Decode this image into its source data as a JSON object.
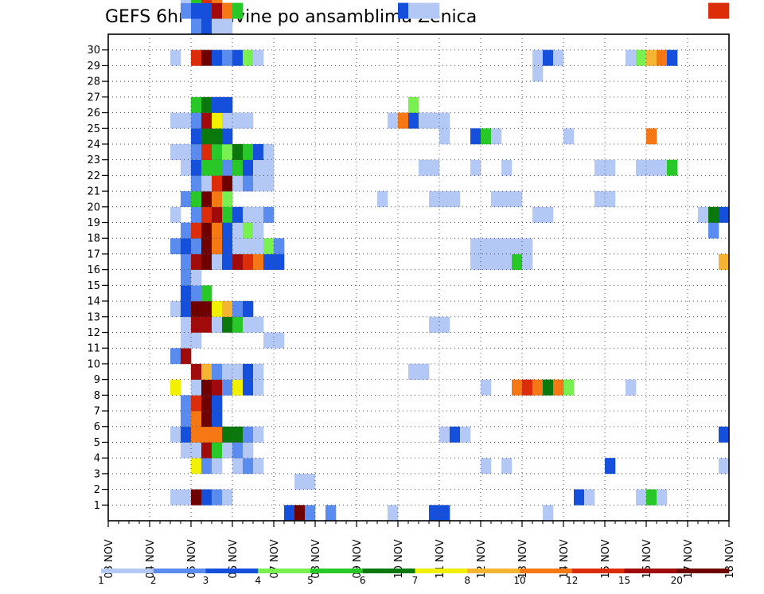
{
  "chart_data": {
    "type": "heatmap",
    "title": "GEFS 6hr padavine po ansamblima Zenica",
    "xlabel": "",
    "ylabel": "",
    "x_ticks": [
      "03 NOV",
      "04 NOV",
      "05 NOV",
      "06 NOV",
      "07 NOV",
      "08 NOV",
      "09 NOV",
      "10 NOV",
      "11 NOV",
      "12 NOV",
      "13 NOV",
      "14 NOV",
      "15 NOV",
      "16 NOV",
      "17 NOV",
      "18 NOV"
    ],
    "y_ticks": [
      "1",
      "2",
      "3",
      "4",
      "5",
      "6",
      "7",
      "8",
      "9",
      "10",
      "11",
      "12",
      "13",
      "14",
      "15",
      "16",
      "17",
      "18",
      "19",
      "20",
      "21",
      "22",
      "23",
      "24",
      "25",
      "26",
      "27",
      "28",
      "29",
      "30"
    ],
    "x_step": "6hr",
    "time_slots": 60,
    "members": 31,
    "grid": true,
    "legend": {
      "placement": "bottom",
      "labels": [
        "1",
        "2",
        "3",
        "4",
        "5",
        "6",
        "7",
        "8",
        "10",
        "12",
        "15",
        "20"
      ],
      "colors": [
        "#b4c8f5",
        "#5a8cf0",
        "#1450dc",
        "#78f050",
        "#28c828",
        "#0a780a",
        "#f0f000",
        "#f5b432",
        "#f57814",
        "#dc2d0a",
        "#a00a0a",
        "#6e0000"
      ]
    },
    "cells": [
      [
        0,
        17,
        2
      ],
      [
        0,
        18,
        11
      ],
      [
        0,
        19,
        1
      ],
      [
        0,
        21,
        1
      ],
      [
        0,
        27,
        0
      ],
      [
        0,
        31,
        2
      ],
      [
        0,
        32,
        2
      ],
      [
        0,
        42,
        0
      ],
      [
        1,
        6,
        0
      ],
      [
        1,
        7,
        0
      ],
      [
        1,
        8,
        11
      ],
      [
        1,
        9,
        2
      ],
      [
        1,
        10,
        1
      ],
      [
        1,
        11,
        0
      ],
      [
        1,
        45,
        2
      ],
      [
        1,
        46,
        0
      ],
      [
        1,
        51,
        0
      ],
      [
        1,
        52,
        4
      ],
      [
        1,
        53,
        0
      ],
      [
        2,
        18,
        0
      ],
      [
        2,
        19,
        0
      ],
      [
        3,
        8,
        6
      ],
      [
        3,
        9,
        1
      ],
      [
        3,
        10,
        0
      ],
      [
        3,
        12,
        0
      ],
      [
        3,
        13,
        1
      ],
      [
        3,
        14,
        0
      ],
      [
        3,
        36,
        0
      ],
      [
        3,
        38,
        0
      ],
      [
        3,
        48,
        2
      ],
      [
        3,
        59,
        0
      ],
      [
        4,
        7,
        0
      ],
      [
        4,
        8,
        0
      ],
      [
        4,
        9,
        10
      ],
      [
        4,
        10,
        4
      ],
      [
        4,
        11,
        0
      ],
      [
        4,
        12,
        1
      ],
      [
        4,
        13,
        0
      ],
      [
        5,
        6,
        0
      ],
      [
        5,
        7,
        2
      ],
      [
        5,
        8,
        8
      ],
      [
        5,
        9,
        8
      ],
      [
        5,
        10,
        8
      ],
      [
        5,
        11,
        5
      ],
      [
        5,
        12,
        5
      ],
      [
        5,
        13,
        1
      ],
      [
        5,
        14,
        0
      ],
      [
        5,
        32,
        0
      ],
      [
        5,
        33,
        2
      ],
      [
        5,
        34,
        0
      ],
      [
        5,
        59,
        2
      ],
      [
        6,
        7,
        1
      ],
      [
        6,
        8,
        8
      ],
      [
        6,
        9,
        11
      ],
      [
        6,
        10,
        2
      ],
      [
        7,
        7,
        1
      ],
      [
        7,
        8,
        9
      ],
      [
        7,
        9,
        11
      ],
      [
        7,
        10,
        2
      ],
      [
        8,
        6,
        6
      ],
      [
        8,
        8,
        0
      ],
      [
        8,
        9,
        11
      ],
      [
        8,
        10,
        10
      ],
      [
        8,
        11,
        1
      ],
      [
        8,
        12,
        6
      ],
      [
        8,
        13,
        2
      ],
      [
        8,
        14,
        0
      ],
      [
        8,
        36,
        0
      ],
      [
        8,
        39,
        8
      ],
      [
        8,
        40,
        9
      ],
      [
        8,
        41,
        8
      ],
      [
        8,
        42,
        5
      ],
      [
        8,
        43,
        8
      ],
      [
        8,
        44,
        3
      ],
      [
        8,
        50,
        0
      ],
      [
        9,
        8,
        10
      ],
      [
        9,
        9,
        7
      ],
      [
        9,
        10,
        1
      ],
      [
        9,
        11,
        0
      ],
      [
        9,
        12,
        0
      ],
      [
        9,
        13,
        2
      ],
      [
        9,
        14,
        0
      ],
      [
        9,
        29,
        0
      ],
      [
        9,
        30,
        0
      ],
      [
        10,
        6,
        1
      ],
      [
        10,
        7,
        10
      ],
      [
        11,
        7,
        0
      ],
      [
        11,
        8,
        0
      ],
      [
        11,
        15,
        0
      ],
      [
        11,
        16,
        0
      ],
      [
        12,
        7,
        0
      ],
      [
        12,
        8,
        10
      ],
      [
        12,
        9,
        10
      ],
      [
        12,
        10,
        0
      ],
      [
        12,
        11,
        5
      ],
      [
        12,
        12,
        4
      ],
      [
        12,
        13,
        0
      ],
      [
        12,
        14,
        0
      ],
      [
        12,
        31,
        0
      ],
      [
        12,
        32,
        0
      ],
      [
        13,
        6,
        0
      ],
      [
        13,
        7,
        2
      ],
      [
        13,
        8,
        11
      ],
      [
        13,
        9,
        11
      ],
      [
        13,
        10,
        6
      ],
      [
        13,
        11,
        7
      ],
      [
        13,
        12,
        1
      ],
      [
        13,
        13,
        2
      ],
      [
        14,
        7,
        2
      ],
      [
        14,
        8,
        1
      ],
      [
        14,
        9,
        4
      ],
      [
        15,
        7,
        1
      ],
      [
        15,
        8,
        0
      ],
      [
        16,
        7,
        1
      ],
      [
        16,
        8,
        10
      ],
      [
        16,
        9,
        11
      ],
      [
        16,
        10,
        0
      ],
      [
        16,
        11,
        2
      ],
      [
        16,
        12,
        10
      ],
      [
        16,
        13,
        9
      ],
      [
        16,
        14,
        8
      ],
      [
        16,
        15,
        2
      ],
      [
        16,
        16,
        2
      ],
      [
        16,
        35,
        0
      ],
      [
        16,
        36,
        0
      ],
      [
        16,
        37,
        0
      ],
      [
        16,
        38,
        0
      ],
      [
        16,
        39,
        4
      ],
      [
        16,
        40,
        0
      ],
      [
        16,
        59,
        7
      ],
      [
        17,
        6,
        1
      ],
      [
        17,
        7,
        2
      ],
      [
        17,
        8,
        1
      ],
      [
        17,
        9,
        11
      ],
      [
        17,
        10,
        8
      ],
      [
        17,
        11,
        2
      ],
      [
        17,
        12,
        0
      ],
      [
        17,
        13,
        0
      ],
      [
        17,
        14,
        0
      ],
      [
        17,
        15,
        3
      ],
      [
        17,
        16,
        1
      ],
      [
        17,
        35,
        0
      ],
      [
        17,
        36,
        0
      ],
      [
        17,
        37,
        0
      ],
      [
        17,
        38,
        0
      ],
      [
        17,
        39,
        0
      ],
      [
        17,
        40,
        0
      ],
      [
        18,
        7,
        1
      ],
      [
        18,
        8,
        9
      ],
      [
        18,
        9,
        11
      ],
      [
        18,
        10,
        8
      ],
      [
        18,
        11,
        2
      ],
      [
        18,
        12,
        0
      ],
      [
        18,
        13,
        3
      ],
      [
        18,
        14,
        0
      ],
      [
        18,
        58,
        1
      ],
      [
        19,
        6,
        0
      ],
      [
        19,
        8,
        1
      ],
      [
        19,
        9,
        9
      ],
      [
        19,
        10,
        10
      ],
      [
        19,
        11,
        4
      ],
      [
        19,
        12,
        2
      ],
      [
        19,
        13,
        0
      ],
      [
        19,
        14,
        0
      ],
      [
        19,
        15,
        1
      ],
      [
        19,
        41,
        0
      ],
      [
        19,
        42,
        0
      ],
      [
        19,
        57,
        0
      ],
      [
        19,
        58,
        5
      ],
      [
        19,
        59,
        2
      ],
      [
        19,
        60,
        2
      ],
      [
        20,
        7,
        1
      ],
      [
        20,
        8,
        4
      ],
      [
        20,
        9,
        11
      ],
      [
        20,
        10,
        8
      ],
      [
        20,
        11,
        3
      ],
      [
        20,
        26,
        0
      ],
      [
        20,
        31,
        0
      ],
      [
        20,
        32,
        0
      ],
      [
        20,
        33,
        0
      ],
      [
        20,
        37,
        0
      ],
      [
        20,
        38,
        0
      ],
      [
        20,
        39,
        0
      ],
      [
        20,
        47,
        0
      ],
      [
        20,
        48,
        0
      ],
      [
        21,
        8,
        1
      ],
      [
        21,
        9,
        0
      ],
      [
        21,
        10,
        9
      ],
      [
        21,
        11,
        11
      ],
      [
        21,
        12,
        0
      ],
      [
        21,
        13,
        1
      ],
      [
        21,
        14,
        0
      ],
      [
        21,
        15,
        0
      ],
      [
        22,
        7,
        0
      ],
      [
        22,
        8,
        2
      ],
      [
        22,
        9,
        4
      ],
      [
        22,
        10,
        4
      ],
      [
        22,
        11,
        1
      ],
      [
        22,
        12,
        4
      ],
      [
        22,
        13,
        2
      ],
      [
        22,
        14,
        0
      ],
      [
        22,
        15,
        0
      ],
      [
        22,
        30,
        0
      ],
      [
        22,
        31,
        0
      ],
      [
        22,
        35,
        0
      ],
      [
        22,
        38,
        0
      ],
      [
        22,
        47,
        0
      ],
      [
        22,
        48,
        0
      ],
      [
        22,
        51,
        0
      ],
      [
        22,
        52,
        0
      ],
      [
        22,
        53,
        0
      ],
      [
        22,
        54,
        4
      ],
      [
        23,
        6,
        0
      ],
      [
        23,
        7,
        0
      ],
      [
        23,
        8,
        1
      ],
      [
        23,
        9,
        9
      ],
      [
        23,
        10,
        4
      ],
      [
        23,
        11,
        3
      ],
      [
        23,
        12,
        5
      ],
      [
        23,
        13,
        4
      ],
      [
        23,
        14,
        2
      ],
      [
        23,
        15,
        0
      ],
      [
        24,
        8,
        2
      ],
      [
        24,
        9,
        5
      ],
      [
        24,
        10,
        5
      ],
      [
        24,
        11,
        2
      ],
      [
        24,
        32,
        0
      ],
      [
        24,
        35,
        2
      ],
      [
        24,
        36,
        4
      ],
      [
        24,
        37,
        0
      ],
      [
        24,
        44,
        0
      ],
      [
        24,
        52,
        8
      ],
      [
        25,
        6,
        0
      ],
      [
        25,
        7,
        0
      ],
      [
        25,
        8,
        1
      ],
      [
        25,
        9,
        10
      ],
      [
        25,
        10,
        6
      ],
      [
        25,
        11,
        0
      ],
      [
        25,
        12,
        0
      ],
      [
        25,
        13,
        0
      ],
      [
        25,
        27,
        0
      ],
      [
        25,
        28,
        8
      ],
      [
        25,
        29,
        2
      ],
      [
        25,
        30,
        0
      ],
      [
        25,
        31,
        0
      ],
      [
        25,
        32,
        0
      ],
      [
        26,
        8,
        4
      ],
      [
        26,
        9,
        5
      ],
      [
        26,
        10,
        2
      ],
      [
        26,
        11,
        2
      ],
      [
        26,
        29,
        3
      ],
      [
        28,
        41,
        0
      ],
      [
        29,
        6,
        0
      ],
      [
        29,
        8,
        9
      ],
      [
        29,
        9,
        11
      ],
      [
        29,
        10,
        2
      ],
      [
        29,
        11,
        1
      ],
      [
        29,
        12,
        2
      ],
      [
        29,
        13,
        3
      ],
      [
        29,
        14,
        0
      ],
      [
        29,
        41,
        0
      ],
      [
        29,
        42,
        2
      ],
      [
        29,
        43,
        0
      ],
      [
        29,
        50,
        0
      ],
      [
        29,
        51,
        3
      ],
      [
        29,
        52,
        7
      ],
      [
        29,
        53,
        8
      ],
      [
        29,
        54,
        2
      ],
      [
        31,
        8,
        1
      ],
      [
        31,
        9,
        2
      ],
      [
        31,
        10,
        0
      ],
      [
        31,
        11,
        0
      ],
      [
        32,
        7,
        1
      ],
      [
        32,
        8,
        2
      ],
      [
        32,
        9,
        2
      ],
      [
        32,
        10,
        10
      ],
      [
        32,
        11,
        8
      ],
      [
        32,
        12,
        4
      ],
      [
        32,
        28,
        2
      ],
      [
        32,
        29,
        0
      ],
      [
        32,
        30,
        0
      ],
      [
        32,
        31,
        0
      ],
      [
        32,
        58,
        9
      ],
      [
        32,
        59,
        9
      ],
      [
        32,
        60,
        2
      ],
      [
        33,
        7,
        0
      ],
      [
        33,
        8,
        4
      ],
      [
        33,
        9,
        9
      ],
      [
        33,
        10,
        8
      ],
      [
        34,
        6,
        1
      ],
      [
        34,
        7,
        0
      ],
      [
        34,
        8,
        0
      ],
      [
        34,
        9,
        10
      ],
      [
        34,
        12,
        0
      ],
      [
        34,
        58,
        4
      ],
      [
        34,
        59,
        6
      ],
      [
        34,
        60,
        1
      ],
      [
        35,
        8,
        0
      ],
      [
        35,
        9,
        0
      ],
      [
        36,
        8,
        11
      ],
      [
        36,
        9,
        11
      ],
      [
        36,
        10,
        6
      ],
      [
        36,
        11,
        0
      ],
      [
        36,
        12,
        0
      ],
      [
        36,
        52,
        0
      ]
    ]
  }
}
